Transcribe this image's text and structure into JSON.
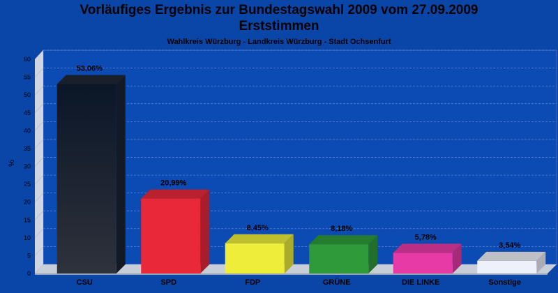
{
  "header": {
    "title": "Vorläufiges Ergebnis zur Bundestagswahl 2009 vom 27.09.2009",
    "title2": "Erststimmen",
    "subtitle": "Wahlkreis Würzburg - Landkreis Würzburg - Stadt Ochsenfurt"
  },
  "chart_data": {
    "type": "bar",
    "title": "Vorläufiges Ergebnis zur Bundestagswahl 2009 vom 27.09.2009",
    "subtitle": "Erststimmen",
    "xlabel": "",
    "ylabel": "%",
    "ylim": [
      0,
      60
    ],
    "yticks": [
      0,
      5,
      10,
      15,
      20,
      25,
      30,
      35,
      40,
      45,
      50,
      55,
      60
    ],
    "grid": true,
    "categories": [
      "CSU",
      "SPD",
      "FDP",
      "GRÜNE",
      "DIE LINKE",
      "Sonstige"
    ],
    "values": [
      53.06,
      20.99,
      8.45,
      8.18,
      5.78,
      3.54
    ],
    "value_labels": [
      "53,06%",
      "20,99%",
      "8,45%",
      "8,18%",
      "5,78%",
      "3,54%"
    ],
    "colors": [
      "#1b2431",
      "#e8293a",
      "#eeee3a",
      "#2e9a3a",
      "#e83aa6",
      "#eef0fa"
    ],
    "background": "#0a45a8"
  }
}
